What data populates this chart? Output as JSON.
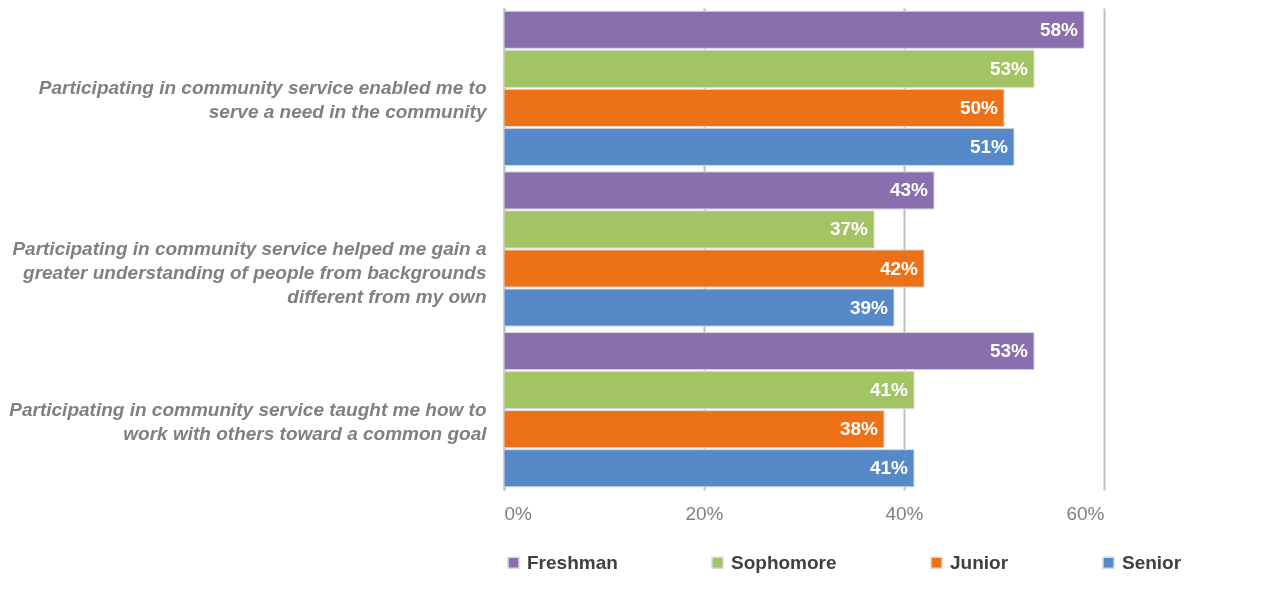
{
  "chart_data": {
    "type": "bar",
    "orientation": "horizontal",
    "categories": [
      "Participating in community service enabled me to serve a need in the community",
      "Participating in community service helped me gain a greater understanding of people from backgrounds different from my own",
      "Participating in community service taught me how to work with others toward a common goal"
    ],
    "series": [
      {
        "name": "Freshman",
        "color": "#8a6fae",
        "values": [
          58,
          43,
          53
        ],
        "value_labels": [
          "58%",
          "43%",
          "53%"
        ]
      },
      {
        "name": "Sophomore",
        "color": "#a2c465",
        "values": [
          53,
          37,
          41
        ],
        "value_labels": [
          "53%",
          "37%",
          "41%"
        ]
      },
      {
        "name": "Junior",
        "color": "#ed7117",
        "values": [
          50,
          42,
          38
        ],
        "value_labels": [
          "50%",
          "42%",
          "38%"
        ]
      },
      {
        "name": "Senior",
        "color": "#5689c8",
        "values": [
          51,
          39,
          41
        ],
        "value_labels": [
          "51%",
          "39%",
          "41%"
        ]
      }
    ],
    "xlim": [
      0,
      60
    ],
    "xticks": [
      {
        "value": 0,
        "label": "0%"
      },
      {
        "value": 20,
        "label": "20%"
      },
      {
        "value": 40,
        "label": "40%"
      },
      {
        "value": 60,
        "label": "60%"
      }
    ],
    "grid": "x",
    "legend": "bottom"
  }
}
